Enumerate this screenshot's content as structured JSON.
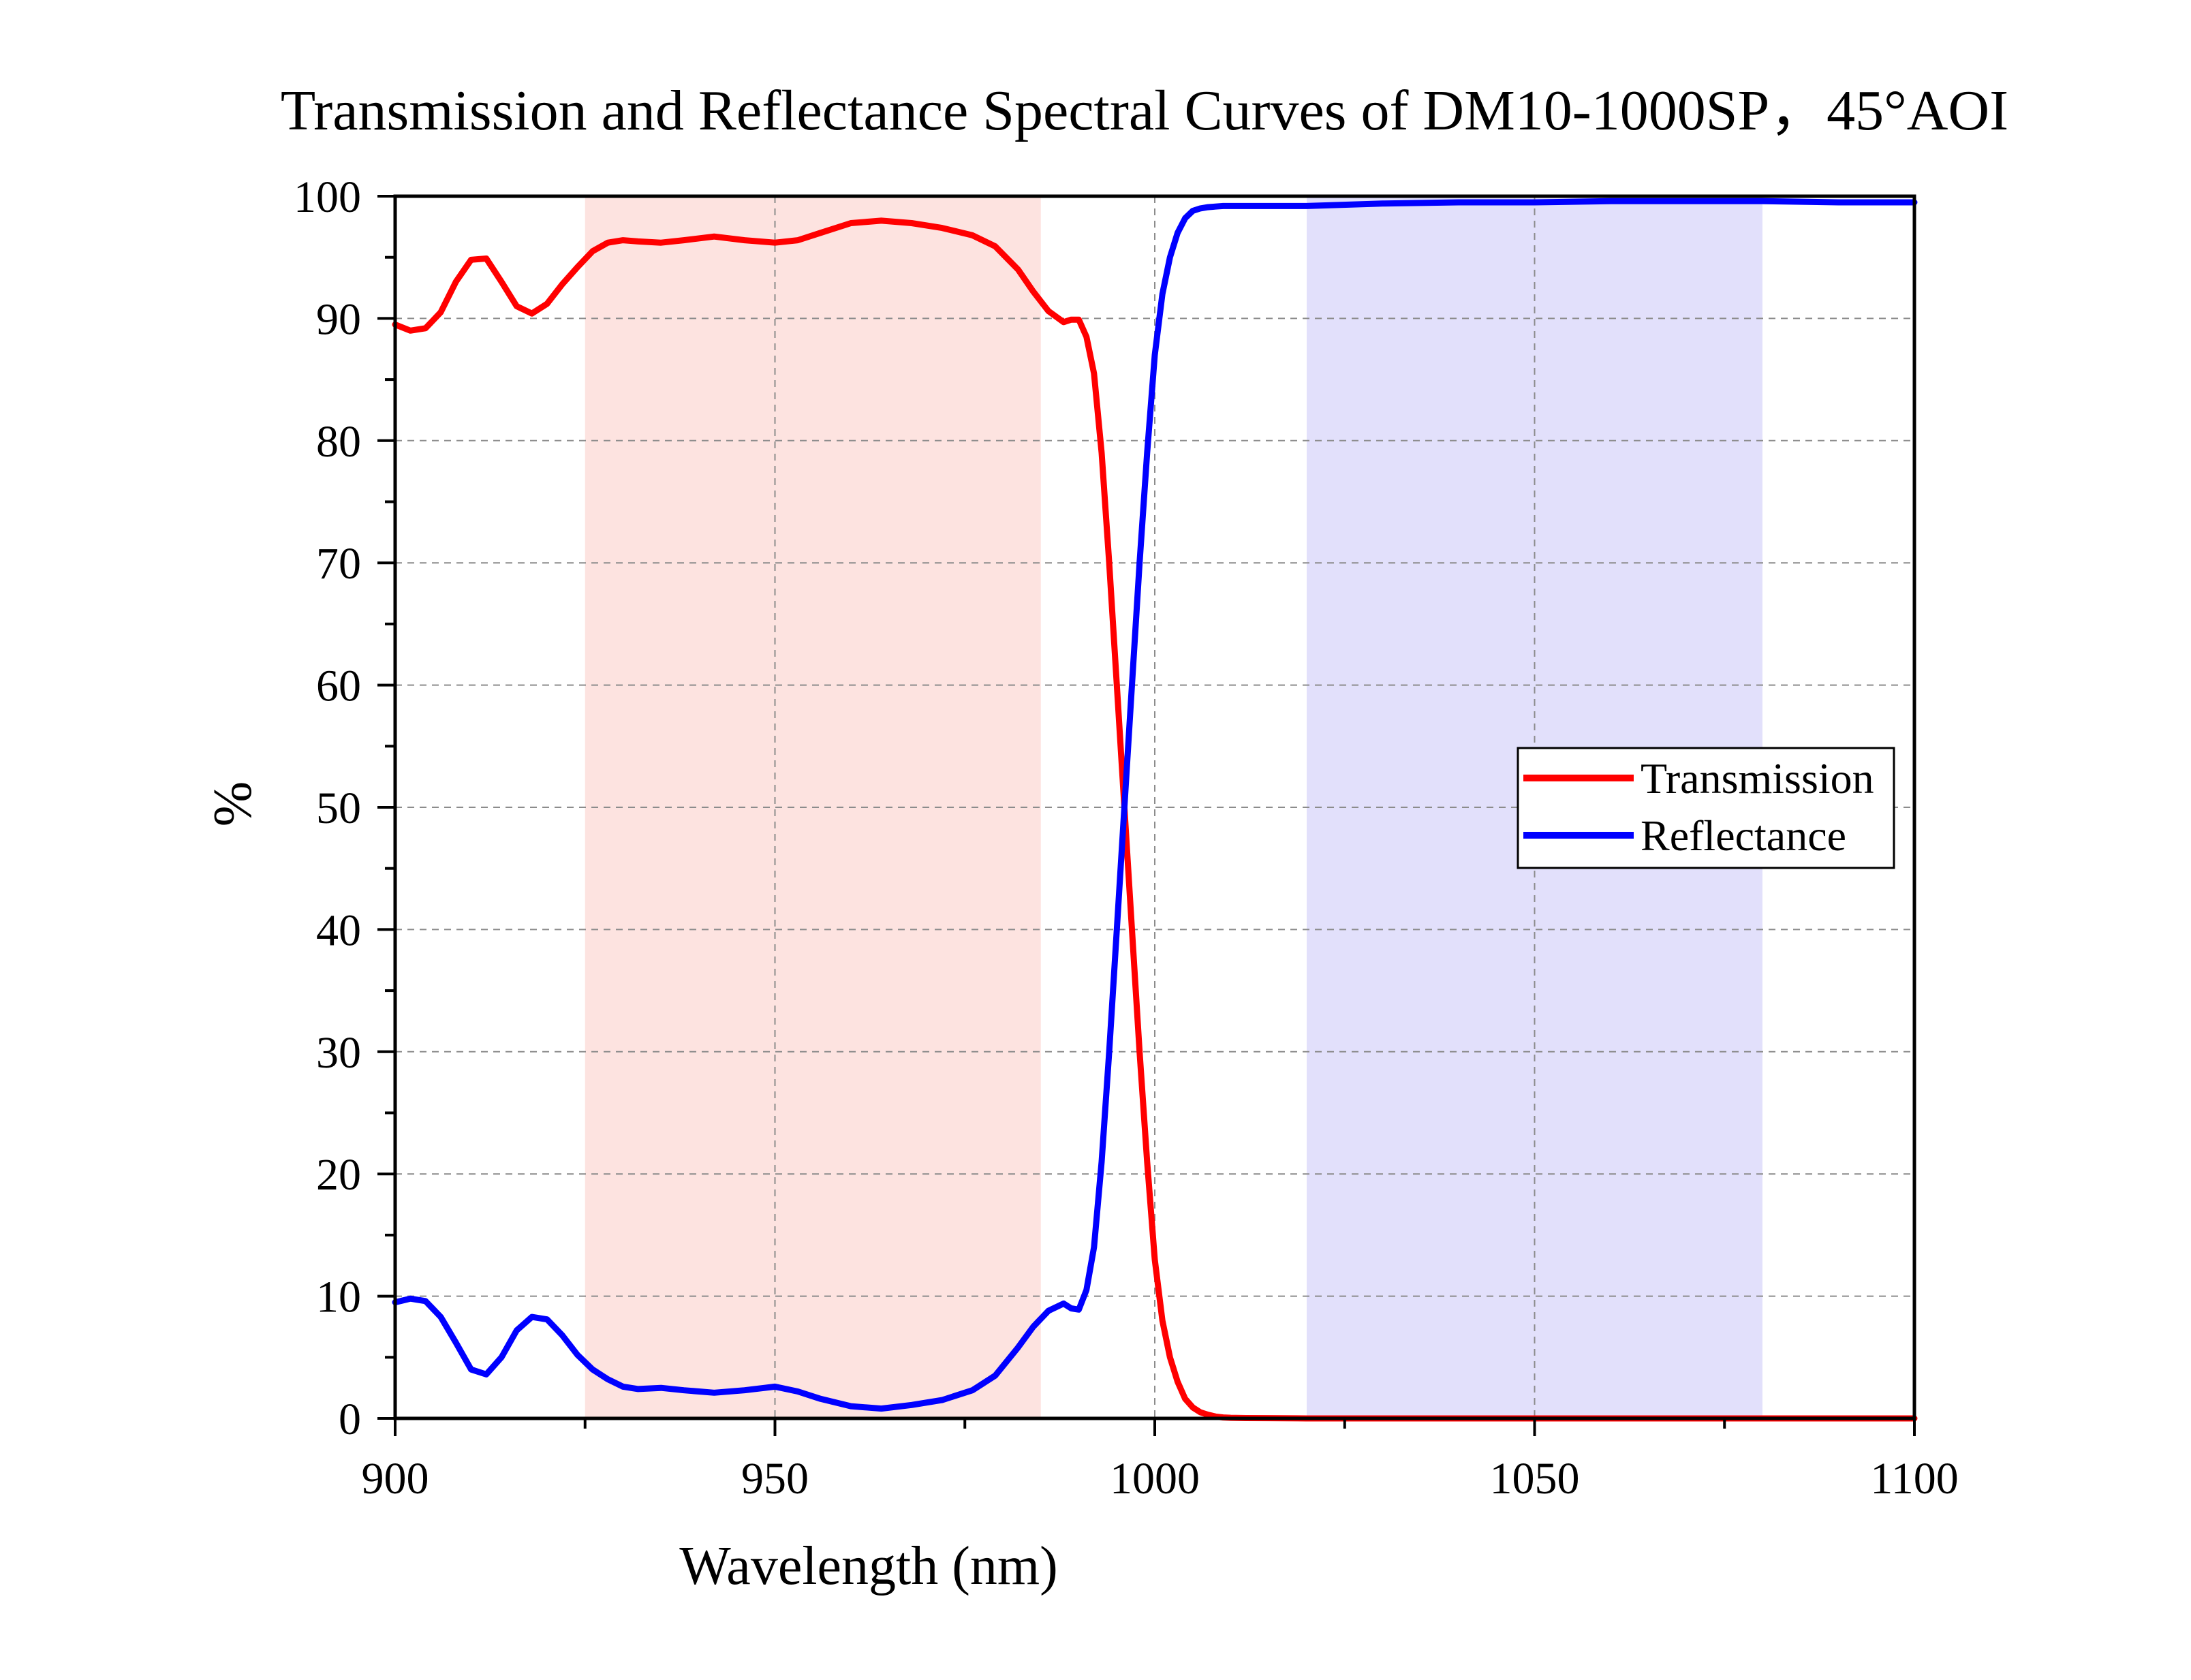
{
  "chart_data": {
    "type": "line",
    "title": "Transmission and Reflectance Spectral Curves of DM10-1000SP，45°AOI",
    "xlabel": "Wavelength (nm)",
    "ylabel": "%",
    "xlim": [
      900,
      1100
    ],
    "ylim": [
      0,
      100
    ],
    "x_ticks": [
      900,
      950,
      1000,
      1050,
      1100
    ],
    "y_ticks": [
      0,
      10,
      20,
      30,
      40,
      50,
      60,
      70,
      80,
      90,
      100
    ],
    "grid": true,
    "legend_position": "right-middle",
    "shaded_regions": [
      {
        "x_start": 925,
        "x_end": 985,
        "color": "#fde3e0"
      },
      {
        "x_start": 1020,
        "x_end": 1080,
        "color": "#e2e0fb"
      }
    ],
    "series": [
      {
        "name": "Transmission",
        "color": "#ff0000",
        "x": [
          900,
          902,
          904,
          906,
          908,
          910,
          912,
          914,
          916,
          918,
          920,
          922,
          924,
          926,
          928,
          930,
          932,
          935,
          938,
          942,
          946,
          950,
          953,
          956,
          960,
          964,
          968,
          972,
          976,
          979,
          982,
          984,
          986,
          988,
          989,
          990,
          991,
          992,
          993,
          994,
          995,
          996,
          997,
          998,
          999,
          1000,
          1001,
          1002,
          1003,
          1004,
          1005,
          1006,
          1007,
          1008,
          1009,
          1010,
          1012,
          1015,
          1020,
          1030,
          1040,
          1050,
          1060,
          1070,
          1080,
          1090,
          1100
        ],
        "y": [
          89.5,
          89.0,
          89.2,
          90.5,
          93.0,
          94.8,
          94.9,
          93.0,
          91.0,
          90.4,
          91.2,
          92.8,
          94.2,
          95.5,
          96.2,
          96.4,
          96.3,
          96.2,
          96.4,
          96.7,
          96.4,
          96.2,
          96.4,
          97.0,
          97.8,
          98.0,
          97.8,
          97.4,
          96.8,
          95.9,
          94.0,
          92.2,
          90.6,
          89.7,
          89.9,
          89.9,
          88.5,
          85.5,
          79.0,
          70.0,
          60.0,
          50.0,
          40.0,
          30.0,
          21.0,
          13.0,
          8.0,
          5.0,
          3.0,
          1.6,
          0.9,
          0.5,
          0.3,
          0.15,
          0.08,
          0.05,
          0.03,
          0.02,
          0.0,
          0.0,
          0.0,
          0.0,
          0.0,
          0.0,
          0.0,
          0.0,
          0.0
        ]
      },
      {
        "name": "Reflectance",
        "color": "#0000ff",
        "x": [
          900,
          902,
          904,
          906,
          908,
          910,
          912,
          914,
          916,
          918,
          920,
          922,
          924,
          926,
          928,
          930,
          932,
          935,
          938,
          942,
          946,
          950,
          953,
          956,
          960,
          964,
          968,
          972,
          976,
          979,
          982,
          984,
          986,
          988,
          989,
          990,
          991,
          992,
          993,
          994,
          995,
          996,
          997,
          998,
          999,
          1000,
          1001,
          1002,
          1003,
          1004,
          1005,
          1006,
          1007,
          1008,
          1009,
          1010,
          1012,
          1015,
          1020,
          1030,
          1040,
          1050,
          1060,
          1070,
          1080,
          1090,
          1100
        ],
        "y": [
          9.5,
          9.8,
          9.6,
          8.3,
          6.2,
          4.0,
          3.6,
          5.0,
          7.2,
          8.3,
          8.1,
          6.8,
          5.2,
          4.0,
          3.2,
          2.6,
          2.4,
          2.5,
          2.3,
          2.1,
          2.3,
          2.6,
          2.2,
          1.6,
          1.0,
          0.8,
          1.1,
          1.5,
          2.3,
          3.5,
          5.8,
          7.5,
          8.8,
          9.4,
          9.0,
          8.9,
          10.5,
          14.0,
          21.0,
          30.0,
          40.0,
          50.0,
          60.0,
          70.0,
          79.0,
          87.0,
          92.0,
          95.0,
          97.0,
          98.2,
          98.8,
          99.0,
          99.1,
          99.15,
          99.2,
          99.2,
          99.2,
          99.2,
          99.2,
          99.4,
          99.5,
          99.5,
          99.6,
          99.6,
          99.6,
          99.5,
          99.5
        ]
      }
    ]
  }
}
